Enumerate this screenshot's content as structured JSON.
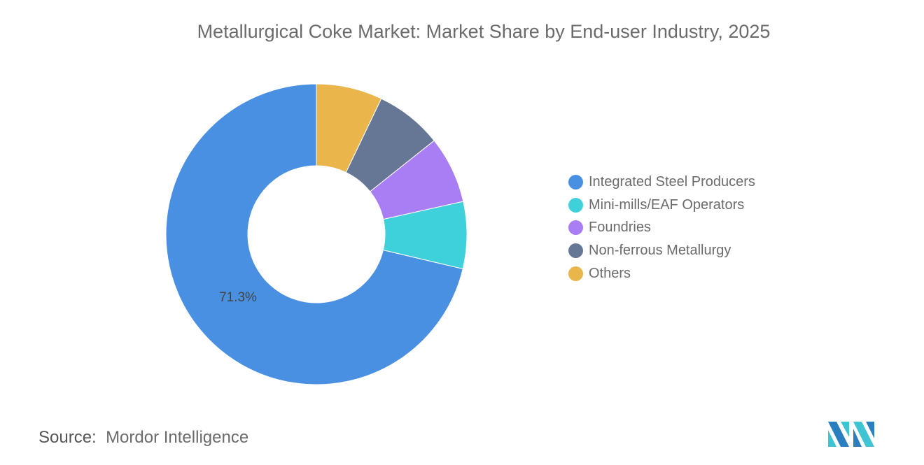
{
  "title": "Metallurgical Coke Market: Market Share by End-user Industry, 2025",
  "chart_data": {
    "type": "pie",
    "donut": true,
    "title": "Metallurgical Coke Market: Market Share by End-user Industry, 2025",
    "categories": [
      "Integrated Steel Producers",
      "Mini-mills/EAF Operators",
      "Foundries",
      "Non-ferrous Metallurgy",
      "Others"
    ],
    "values": [
      71.3,
      7.2,
      7.2,
      7.2,
      7.1
    ],
    "colors": [
      "#4A90E2",
      "#3FD1DB",
      "#A97EF4",
      "#667796",
      "#EAB54A"
    ],
    "data_labels": [
      "71.3%",
      "",
      "",
      "",
      ""
    ],
    "legend_position": "right"
  },
  "source": {
    "label": "Source:",
    "value": "Mordor Intelligence"
  }
}
